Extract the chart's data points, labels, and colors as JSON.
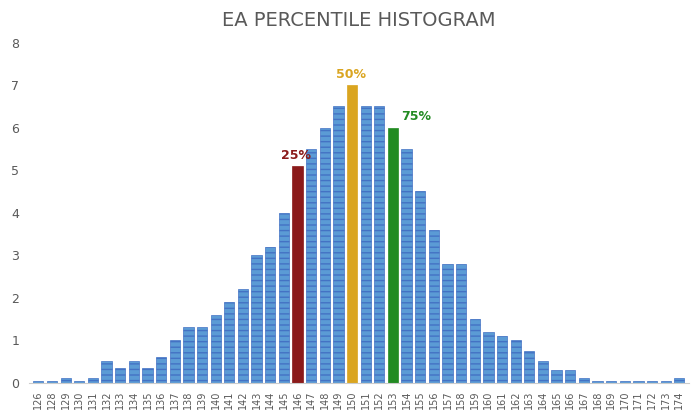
{
  "title": "EA PERCENTILE HISTOGRAM",
  "categories": [
    "126",
    "128",
    "129",
    "130",
    "131",
    "132",
    "133",
    "134",
    "135",
    "136",
    "137",
    "138",
    "139",
    "140",
    "141",
    "142",
    "143",
    "144",
    "145",
    "146",
    "147",
    "148",
    "149",
    "150",
    "151",
    "152",
    "153",
    "154",
    "155",
    "156",
    "157",
    "158",
    "159",
    "160",
    "161",
    "162",
    "163",
    "164",
    "165",
    "166",
    "167",
    "168",
    "169",
    "170",
    "171",
    "172",
    "173",
    "174"
  ],
  "values": [
    0.05,
    0.05,
    0.1,
    0.05,
    0.1,
    0.5,
    0.35,
    0.5,
    0.35,
    0.6,
    1.0,
    1.3,
    1.3,
    1.6,
    1.9,
    2.2,
    3.0,
    3.2,
    4.0,
    5.1,
    5.5,
    6.0,
    6.5,
    7.0,
    6.5,
    6.5,
    6.0,
    5.5,
    4.5,
    3.6,
    2.8,
    2.8,
    1.5,
    1.2,
    1.1,
    1.0,
    0.75,
    0.5,
    0.3,
    0.3,
    0.1,
    0.05,
    0.05,
    0.05,
    0.05,
    0.05,
    0.05,
    0.1
  ],
  "bar_color": "#5B9BD5",
  "bar_edge_color": "#4472C4",
  "percentile_25_idx": 19,
  "percentile_50_idx": 23,
  "percentile_75_idx": 26,
  "color_25": "#8B1A1A",
  "color_50": "#DAA520",
  "color_75": "#228B22",
  "label_25": "25%",
  "label_50": "50%",
  "label_75": "75%",
  "ylim": [
    0,
    8
  ],
  "yticks": [
    0,
    1,
    2,
    3,
    4,
    5,
    6,
    7,
    8
  ],
  "title_color": "#595959",
  "title_fontsize": 14,
  "tick_color": "#595959",
  "bg_color": "#FFFFFF",
  "bar_width": 0.75
}
